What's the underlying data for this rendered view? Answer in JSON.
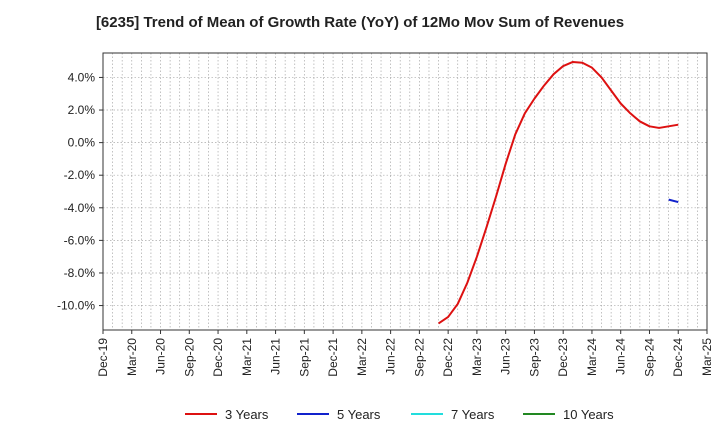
{
  "chart_data": {
    "type": "line",
    "title": "[6235]  Trend of Mean of Growth Rate (YoY) of 12Mo Mov Sum of Revenues",
    "xlabel": "",
    "ylabel": "",
    "ylim": [
      -11.5,
      5.5
    ],
    "x_ticks": [
      "Dec-19",
      "Mar-20",
      "Jun-20",
      "Sep-20",
      "Dec-20",
      "Mar-21",
      "Jun-21",
      "Sep-21",
      "Dec-21",
      "Mar-22",
      "Jun-22",
      "Sep-22",
      "Dec-22",
      "Mar-23",
      "Jun-23",
      "Sep-23",
      "Dec-23",
      "Mar-24",
      "Jun-24",
      "Sep-24",
      "Dec-24",
      "Mar-25"
    ],
    "y_ticks": [
      4,
      2,
      0,
      -2,
      -4,
      -6,
      -8,
      -10
    ],
    "y_tick_labels": [
      "4.0%",
      "2.0%",
      "0.0%",
      "-2.0%",
      "-4.0%",
      "-6.0%",
      "-8.0%",
      "-10.0%"
    ],
    "grid": true,
    "legend_position": "bottom",
    "series": [
      {
        "name": "3 Years",
        "color": "#dd1111",
        "x": [
          35,
          36,
          37,
          38,
          39,
          40,
          41,
          42,
          43,
          44,
          45,
          46,
          47,
          48,
          49,
          50,
          51,
          52,
          53,
          54,
          55,
          56,
          57,
          58,
          59,
          60
        ],
        "values": [
          -11.1,
          -10.7,
          -9.9,
          -8.6,
          -7.0,
          -5.2,
          -3.3,
          -1.3,
          0.5,
          1.8,
          2.7,
          3.5,
          4.2,
          4.7,
          4.95,
          4.9,
          4.6,
          4.0,
          3.2,
          2.4,
          1.8,
          1.3,
          1.0,
          0.9,
          1.0,
          1.1
        ]
      },
      {
        "name": "5 Years",
        "color": "#1122cc",
        "x": [
          59,
          60
        ],
        "values": [
          -3.5,
          -3.65
        ]
      },
      {
        "name": "7 Years",
        "color": "#22dddd",
        "x": [],
        "values": []
      },
      {
        "name": "10 Years",
        "color": "#228822",
        "x": [],
        "values": []
      }
    ]
  }
}
